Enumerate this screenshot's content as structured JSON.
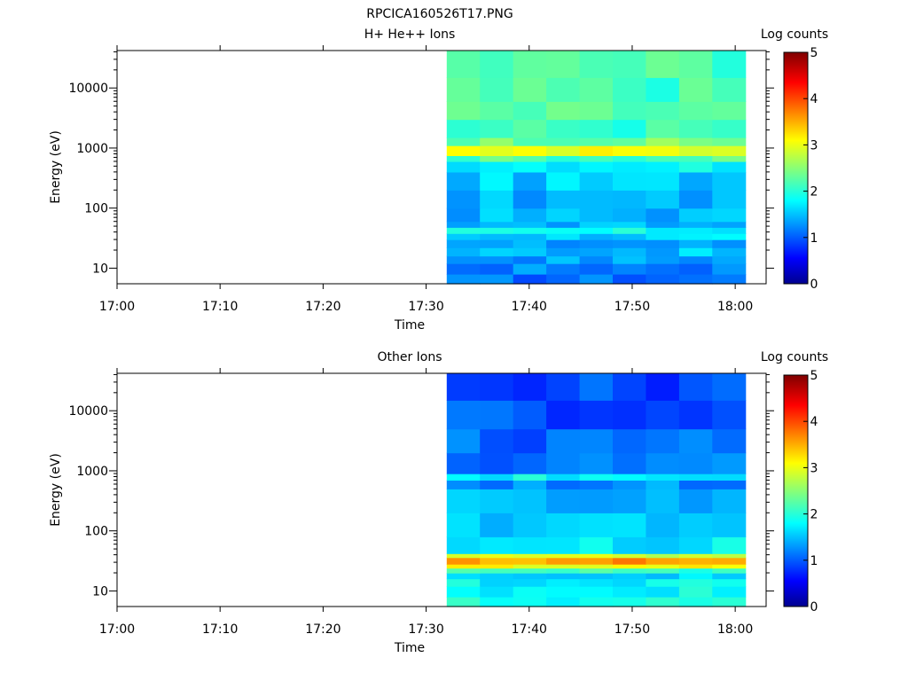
{
  "figure_title": "RPCICA160526T17.PNG",
  "chart_data": [
    {
      "type": "heatmap",
      "title": "H+ He++ Ions",
      "xlabel": "Time",
      "ylabel": "Energy (eV)",
      "y_scale": "log",
      "ylim": [
        5.5,
        42000
      ],
      "xlim": [
        "17:00",
        "18:03"
      ],
      "x_ticks": [
        "17:00",
        "17:10",
        "17:20",
        "17:30",
        "17:40",
        "17:50",
        "18:00"
      ],
      "y_ticks": [
        "10",
        "100",
        "1000",
        "10000"
      ],
      "data_time_range": [
        "17:32",
        "18:01"
      ],
      "colorbar": {
        "label": "Log counts",
        "range": [
          0,
          5
        ],
        "ticks": [
          "0",
          "1",
          "2",
          "3",
          "4",
          "5"
        ]
      },
      "rows": [
        {
          "e_low": 5.5,
          "e_high": 8,
          "value": 1.1
        },
        {
          "e_low": 8,
          "e_high": 12,
          "value": 1.2
        },
        {
          "e_low": 12,
          "e_high": 16,
          "value": 1.35
        },
        {
          "e_low": 16,
          "e_high": 22,
          "value": 1.5
        },
        {
          "e_low": 22,
          "e_high": 30,
          "value": 1.3
        },
        {
          "e_low": 30,
          "e_high": 38,
          "value": 1.6
        },
        {
          "e_low": 38,
          "e_high": 48,
          "value": 1.8
        },
        {
          "e_low": 48,
          "e_high": 60,
          "value": 1.4
        },
        {
          "e_low": 60,
          "e_high": 100,
          "value": 1.45
        },
        {
          "e_low": 100,
          "e_high": 200,
          "value": 1.4
        },
        {
          "e_low": 200,
          "e_high": 400,
          "value": 1.55
        },
        {
          "e_low": 400,
          "e_high": 600,
          "value": 1.85
        },
        {
          "e_low": 600,
          "e_high": 750,
          "value": 2.2
        },
        {
          "e_low": 750,
          "e_high": 1100,
          "value": 3.0
        },
        {
          "e_low": 1100,
          "e_high": 1500,
          "value": 2.4
        },
        {
          "e_low": 1500,
          "e_high": 3000,
          "value": 2.1
        },
        {
          "e_low": 3000,
          "e_high": 6000,
          "value": 2.2
        },
        {
          "e_low": 6000,
          "e_high": 15000,
          "value": 2.15
        },
        {
          "e_low": 15000,
          "e_high": 42000,
          "value": 2.2
        }
      ]
    },
    {
      "type": "heatmap",
      "title": "Other Ions",
      "xlabel": "Time",
      "ylabel": "Energy (eV)",
      "y_scale": "log",
      "ylim": [
        5.5,
        42000
      ],
      "xlim": [
        "17:00",
        "18:03"
      ],
      "x_ticks": [
        "17:00",
        "17:10",
        "17:20",
        "17:30",
        "17:40",
        "17:50",
        "18:00"
      ],
      "y_ticks": [
        "10",
        "100",
        "1000",
        "10000"
      ],
      "data_time_range": [
        "17:32",
        "18:01"
      ],
      "colorbar": {
        "label": "Log counts",
        "range": [
          0,
          5
        ],
        "ticks": [
          "0",
          "1",
          "2",
          "3",
          "4",
          "5"
        ]
      },
      "rows": [
        {
          "e_low": 5.5,
          "e_high": 8,
          "value": 1.9
        },
        {
          "e_low": 8,
          "e_high": 12,
          "value": 1.85
        },
        {
          "e_low": 12,
          "e_high": 16,
          "value": 1.8
        },
        {
          "e_low": 16,
          "e_high": 20,
          "value": 1.6
        },
        {
          "e_low": 20,
          "e_high": 24,
          "value": 2.1
        },
        {
          "e_low": 24,
          "e_high": 28,
          "value": 3.1
        },
        {
          "e_low": 28,
          "e_high": 36,
          "value": 3.6
        },
        {
          "e_low": 36,
          "e_high": 42,
          "value": 2.8
        },
        {
          "e_low": 42,
          "e_high": 80,
          "value": 1.7
        },
        {
          "e_low": 80,
          "e_high": 200,
          "value": 1.6
        },
        {
          "e_low": 200,
          "e_high": 500,
          "value": 1.4
        },
        {
          "e_low": 500,
          "e_high": 700,
          "value": 1.25
        },
        {
          "e_low": 700,
          "e_high": 900,
          "value": 1.8
        },
        {
          "e_low": 900,
          "e_high": 2000,
          "value": 1.15
        },
        {
          "e_low": 2000,
          "e_high": 5000,
          "value": 1.05
        },
        {
          "e_low": 5000,
          "e_high": 15000,
          "value": 0.95
        },
        {
          "e_low": 15000,
          "e_high": 42000,
          "value": 0.9
        }
      ]
    }
  ]
}
